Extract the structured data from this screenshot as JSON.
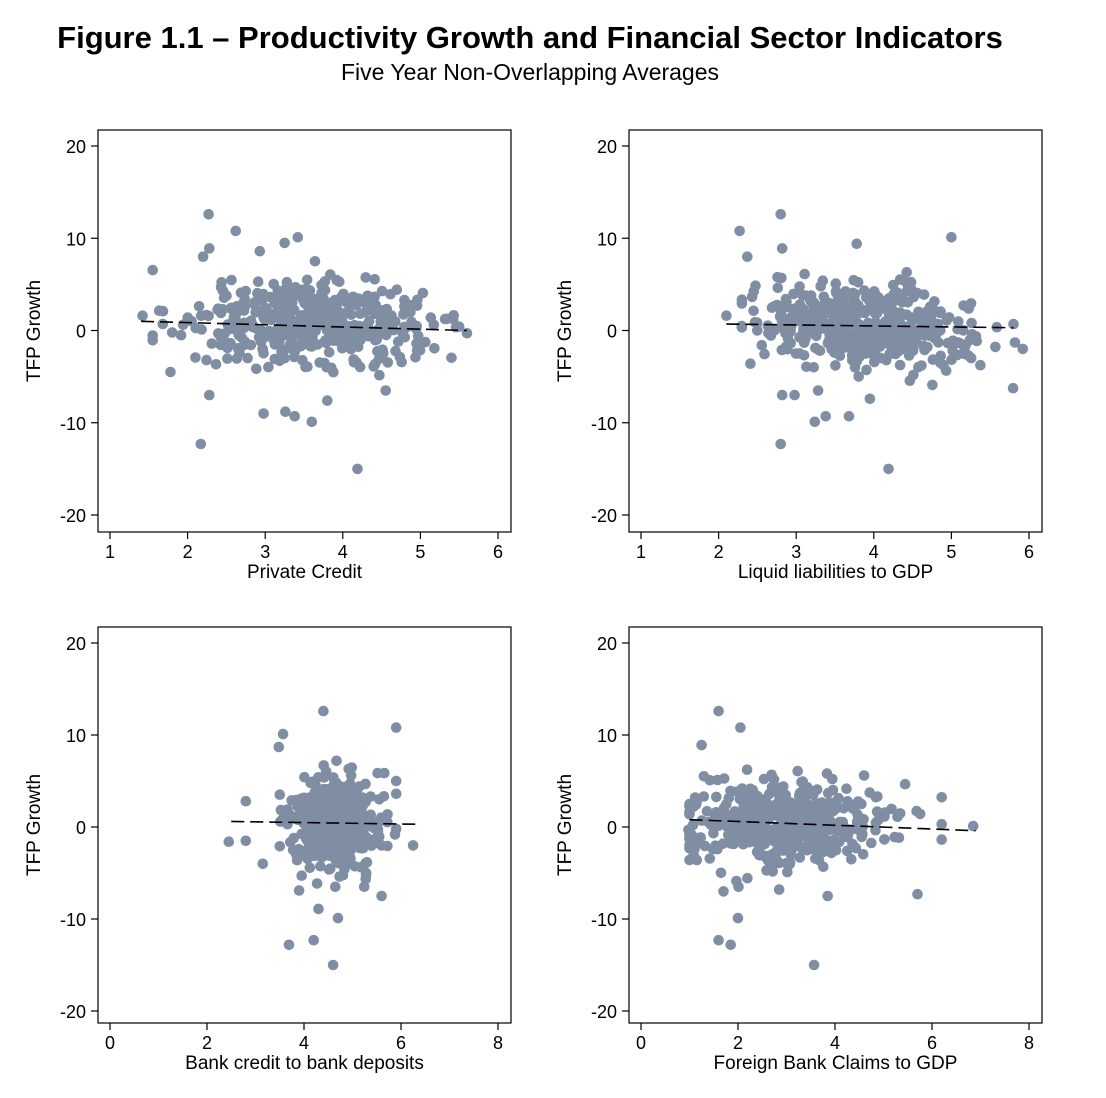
{
  "figure": {
    "title": "Figure 1.1 – Productivity Growth and Financial Sector Indicators",
    "subtitle": "Five Year Non-Overlapping Averages"
  },
  "colors": {
    "marker": "#7f8ea3",
    "fit_line": "#000000",
    "frame": "#000000"
  },
  "chart_data": [
    {
      "type": "scatter",
      "title": "",
      "xlabel": "Private Credit",
      "ylabel": "TFP Growth",
      "xlim": [
        1,
        6
      ],
      "ylim": [
        -20,
        20
      ],
      "xticks": [
        1,
        2,
        3,
        4,
        5,
        6
      ],
      "yticks": [
        20,
        10,
        0,
        -10,
        -20
      ],
      "grid": false,
      "fit_line": {
        "x": [
          1.4,
          5.6
        ],
        "y": [
          1.0,
          0.0
        ]
      },
      "outliers": [
        {
          "x": 2.27,
          "y": 12.6
        },
        {
          "x": 2.17,
          "y": -12.3
        },
        {
          "x": 4.19,
          "y": -15.0
        },
        {
          "x": 1.78,
          "y": -4.5
        },
        {
          "x": 2.28,
          "y": -7.0
        },
        {
          "x": 2.98,
          "y": -9.0
        },
        {
          "x": 3.26,
          "y": -8.8
        },
        {
          "x": 3.38,
          "y": -9.3
        },
        {
          "x": 3.6,
          "y": -9.9
        },
        {
          "x": 3.8,
          "y": -7.6
        },
        {
          "x": 2.28,
          "y": 8.9
        },
        {
          "x": 2.2,
          "y": 8.0
        },
        {
          "x": 2.62,
          "y": 10.8
        },
        {
          "x": 2.93,
          "y": 8.6
        },
        {
          "x": 3.25,
          "y": 9.5
        },
        {
          "x": 3.42,
          "y": 10.1
        },
        {
          "x": 1.42,
          "y": 1.6
        },
        {
          "x": 5.6,
          "y": -0.3
        },
        {
          "x": 1.68,
          "y": 0.7
        }
      ],
      "cloud": {
        "n": 450,
        "x_mean": 3.6,
        "x_sd": 0.75,
        "y_mean": 0.6,
        "y_sd": 2.3,
        "x_min": 1.55,
        "x_max": 5.5
      }
    },
    {
      "type": "scatter",
      "title": "",
      "xlabel": "Liquid liabilities to GDP",
      "ylabel": "TFP Growth",
      "xlim": [
        1,
        6
      ],
      "ylim": [
        -20,
        20
      ],
      "xticks": [
        1,
        2,
        3,
        4,
        5,
        6
      ],
      "yticks": [
        20,
        10,
        0,
        -10,
        -20
      ],
      "grid": false,
      "fit_line": {
        "x": [
          2.1,
          5.8
        ],
        "y": [
          0.7,
          0.3
        ]
      },
      "outliers": [
        {
          "x": 2.8,
          "y": 12.6
        },
        {
          "x": 2.8,
          "y": -12.3
        },
        {
          "x": 4.19,
          "y": -15.0
        },
        {
          "x": 2.27,
          "y": 10.8
        },
        {
          "x": 2.37,
          "y": 8.0
        },
        {
          "x": 2.82,
          "y": 8.9
        },
        {
          "x": 3.78,
          "y": 9.4
        },
        {
          "x": 5.0,
          "y": 10.1
        },
        {
          "x": 2.1,
          "y": 1.6
        },
        {
          "x": 5.92,
          "y": -2.0
        },
        {
          "x": 2.82,
          "y": -7.0
        },
        {
          "x": 2.98,
          "y": -7.0
        },
        {
          "x": 3.24,
          "y": -9.9
        },
        {
          "x": 3.38,
          "y": -9.3
        },
        {
          "x": 3.68,
          "y": -9.3
        },
        {
          "x": 3.95,
          "y": -7.4
        },
        {
          "x": 2.41,
          "y": -3.6
        },
        {
          "x": 5.82,
          "y": -1.3
        }
      ],
      "cloud": {
        "n": 450,
        "x_mean": 3.9,
        "x_sd": 0.7,
        "y_mean": 0.6,
        "y_sd": 2.3,
        "x_min": 2.3,
        "x_max": 5.8
      }
    },
    {
      "type": "scatter",
      "title": "",
      "xlabel": "Bank credit to bank deposits",
      "ylabel": "TFP Growth",
      "xlim": [
        0,
        8
      ],
      "ylim": [
        -20,
        20
      ],
      "xticks": [
        0,
        2,
        4,
        6,
        8
      ],
      "yticks": [
        20,
        10,
        0,
        -10,
        -20
      ],
      "grid": false,
      "fit_line": {
        "x": [
          2.5,
          6.3
        ],
        "y": [
          0.6,
          0.3
        ]
      },
      "outliers": [
        {
          "x": 4.4,
          "y": 12.6
        },
        {
          "x": 3.69,
          "y": -12.8
        },
        {
          "x": 4.2,
          "y": -12.3
        },
        {
          "x": 4.6,
          "y": -15.0
        },
        {
          "x": 5.9,
          "y": 10.8
        },
        {
          "x": 3.57,
          "y": 10.1
        },
        {
          "x": 3.48,
          "y": 8.7
        },
        {
          "x": 2.45,
          "y": -1.6
        },
        {
          "x": 2.8,
          "y": -1.5
        },
        {
          "x": 2.8,
          "y": 2.8
        },
        {
          "x": 6.25,
          "y": -2.0
        },
        {
          "x": 3.15,
          "y": -4.0
        },
        {
          "x": 3.9,
          "y": -6.9
        },
        {
          "x": 4.3,
          "y": -8.9
        },
        {
          "x": 4.7,
          "y": -9.9
        },
        {
          "x": 5.6,
          "y": -7.5
        },
        {
          "x": 5.9,
          "y": 5.0
        }
      ],
      "cloud": {
        "n": 450,
        "x_mean": 4.6,
        "x_sd": 0.45,
        "y_mean": 0.5,
        "y_sd": 2.4,
        "x_min": 3.5,
        "x_max": 5.9
      }
    },
    {
      "type": "scatter",
      "title": "",
      "xlabel": "Foreign Bank Claims to GDP",
      "ylabel": "TFP Growth",
      "xlim": [
        0,
        8
      ],
      "ylim": [
        -20,
        20
      ],
      "xticks": [
        0,
        2,
        4,
        6,
        8
      ],
      "yticks": [
        20,
        10,
        0,
        -10,
        -20
      ],
      "grid": false,
      "fit_line": {
        "x": [
          1.0,
          6.9
        ],
        "y": [
          0.8,
          -0.4
        ]
      },
      "outliers": [
        {
          "x": 1.6,
          "y": 12.6
        },
        {
          "x": 1.6,
          "y": -12.3
        },
        {
          "x": 1.85,
          "y": -12.8
        },
        {
          "x": 3.57,
          "y": -15.0
        },
        {
          "x": 2.05,
          "y": 10.8
        },
        {
          "x": 1.25,
          "y": 8.9
        },
        {
          "x": 6.85,
          "y": 0.1
        },
        {
          "x": 2.0,
          "y": -9.9
        },
        {
          "x": 1.7,
          "y": -7.0
        },
        {
          "x": 5.7,
          "y": -7.3
        },
        {
          "x": 3.85,
          "y": -7.5
        },
        {
          "x": 2.85,
          "y": -6.8
        },
        {
          "x": 0.98,
          "y": -0.3
        },
        {
          "x": 1.15,
          "y": -3.6
        },
        {
          "x": 4.6,
          "y": 5.6
        }
      ],
      "cloud": {
        "n": 450,
        "x_mean": 3.0,
        "x_sd": 1.0,
        "y_mean": 0.3,
        "y_sd": 2.3,
        "x_min": 1.0,
        "x_max": 6.2
      }
    }
  ]
}
